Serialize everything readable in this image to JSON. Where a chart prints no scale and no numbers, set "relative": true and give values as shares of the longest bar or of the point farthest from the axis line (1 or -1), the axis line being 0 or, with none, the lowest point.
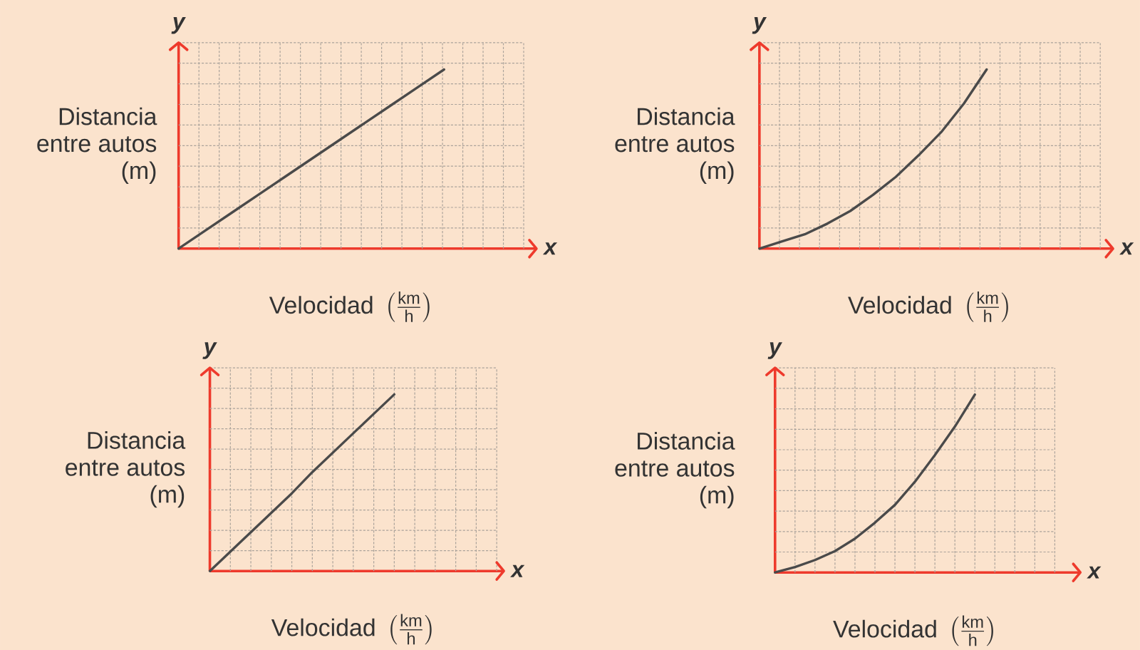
{
  "chart_data": [
    {
      "type": "line",
      "xlabel": "\\text{Velocidad}\\;\\left(\\frac{\\text{km}}{\\text{h}}\\right)",
      "ylabel": "Distancia entre autos (m)",
      "annotations": [
        "x",
        "y"
      ],
      "relative": true,
      "grid": true,
      "marker": "none",
      "color": "#4a4a4a",
      "categories": [
        null,
        null,
        null,
        null,
        null,
        null,
        null,
        null,
        null,
        null,
        null,
        null,
        null,
        null
      ],
      "values": [
        0,
        0.1,
        0.2,
        0.3,
        0.4,
        0.5,
        0.6,
        0.7,
        0.8,
        0.9,
        1,
        null,
        null,
        null
      ]
    },
    {
      "type": "line",
      "xlabel": "\\text{Velocidad}\\;\\left(\\frac{\\text{km}}{\\text{h}}\\right)",
      "ylabel": "Distancia entre autos (m)",
      "annotations": [
        "x",
        "y"
      ],
      "relative": true,
      "grid": true,
      "marker": "none",
      "color": "#4a4a4a",
      "categories": [
        null,
        null,
        null,
        null,
        null,
        null,
        null,
        null,
        null,
        null,
        null,
        null,
        null,
        null,
        null,
        null
      ],
      "values": [
        0,
        0.04,
        0.08,
        0.14,
        0.21,
        0.3,
        0.4,
        0.52,
        0.65,
        0.81,
        1,
        null,
        null,
        null,
        null,
        null
      ]
    },
    {
      "type": "line",
      "xlabel": "\\text{Velocidad}\\;\\left(\\frac{\\text{km}}{\\text{h}}\\right)",
      "ylabel": "Distancia entre autos (m)",
      "annotations": [
        "x",
        "y"
      ],
      "relative": true,
      "grid": true,
      "marker": "none",
      "color": "#4a4a4a",
      "categories": [
        null,
        null,
        null,
        null,
        null,
        null,
        null,
        null,
        null,
        null,
        null,
        null,
        null,
        null,
        null
      ],
      "values": [
        0,
        0.11,
        0.22,
        0.33,
        0.44,
        0.56,
        0.67,
        0.78,
        0.89,
        1,
        null,
        null,
        null,
        null,
        null
      ]
    },
    {
      "type": "line",
      "xlabel": "\\text{Velocidad}\\;\\left(\\frac{\\text{km}}{\\text{h}}\\right)",
      "ylabel": "Distancia entre autos (m)",
      "annotations": [
        "x",
        "y"
      ],
      "relative": true,
      "grid": true,
      "marker": "none",
      "color": "#4a4a4a",
      "categories": [
        null,
        null,
        null,
        null,
        null,
        null,
        null,
        null,
        null,
        null,
        null,
        null,
        null,
        null,
        null
      ],
      "values": [
        0,
        0.03,
        0.07,
        0.12,
        0.19,
        0.28,
        0.38,
        0.51,
        0.66,
        0.82,
        1,
        null,
        null,
        null,
        null
      ]
    }
  ]
}
